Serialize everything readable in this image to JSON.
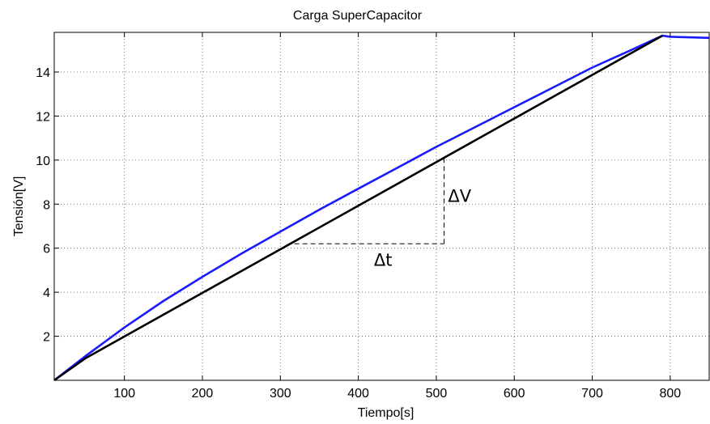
{
  "chart_data": {
    "type": "line",
    "title": "Carga SuperCapacitor",
    "xlabel": "Tiempo[s]",
    "ylabel": "Tensión[V]",
    "xlim": [
      10,
      850
    ],
    "ylim": [
      0,
      15.8
    ],
    "xticks": [
      100,
      200,
      300,
      400,
      500,
      600,
      700,
      800
    ],
    "yticks": [
      2,
      4,
      6,
      8,
      10,
      12,
      14
    ],
    "grid": true,
    "series": [
      {
        "color": "#1a1aff",
        "x": [
          10,
          50,
          100,
          150,
          200,
          250,
          300,
          350,
          400,
          450,
          500,
          550,
          600,
          650,
          700,
          750,
          790,
          800,
          850
        ],
        "y": [
          0.0,
          1.1,
          2.4,
          3.6,
          4.7,
          5.75,
          6.75,
          7.75,
          8.7,
          9.65,
          10.6,
          11.5,
          12.4,
          13.3,
          14.2,
          15.0,
          15.65,
          15.6,
          15.55
        ]
      },
      {
        "color": "#000000",
        "x": [
          10,
          50,
          790
        ],
        "y": [
          0.0,
          1.0,
          15.65
        ]
      }
    ],
    "annotations": [
      {
        "text": "ΔV",
        "x": 515,
        "y": 8.1
      },
      {
        "text": "Δt",
        "x": 420,
        "y": 5.2
      }
    ],
    "guide": {
      "x1": 318,
      "y1": 6.2,
      "x2": 510,
      "y2": 10.1
    }
  }
}
